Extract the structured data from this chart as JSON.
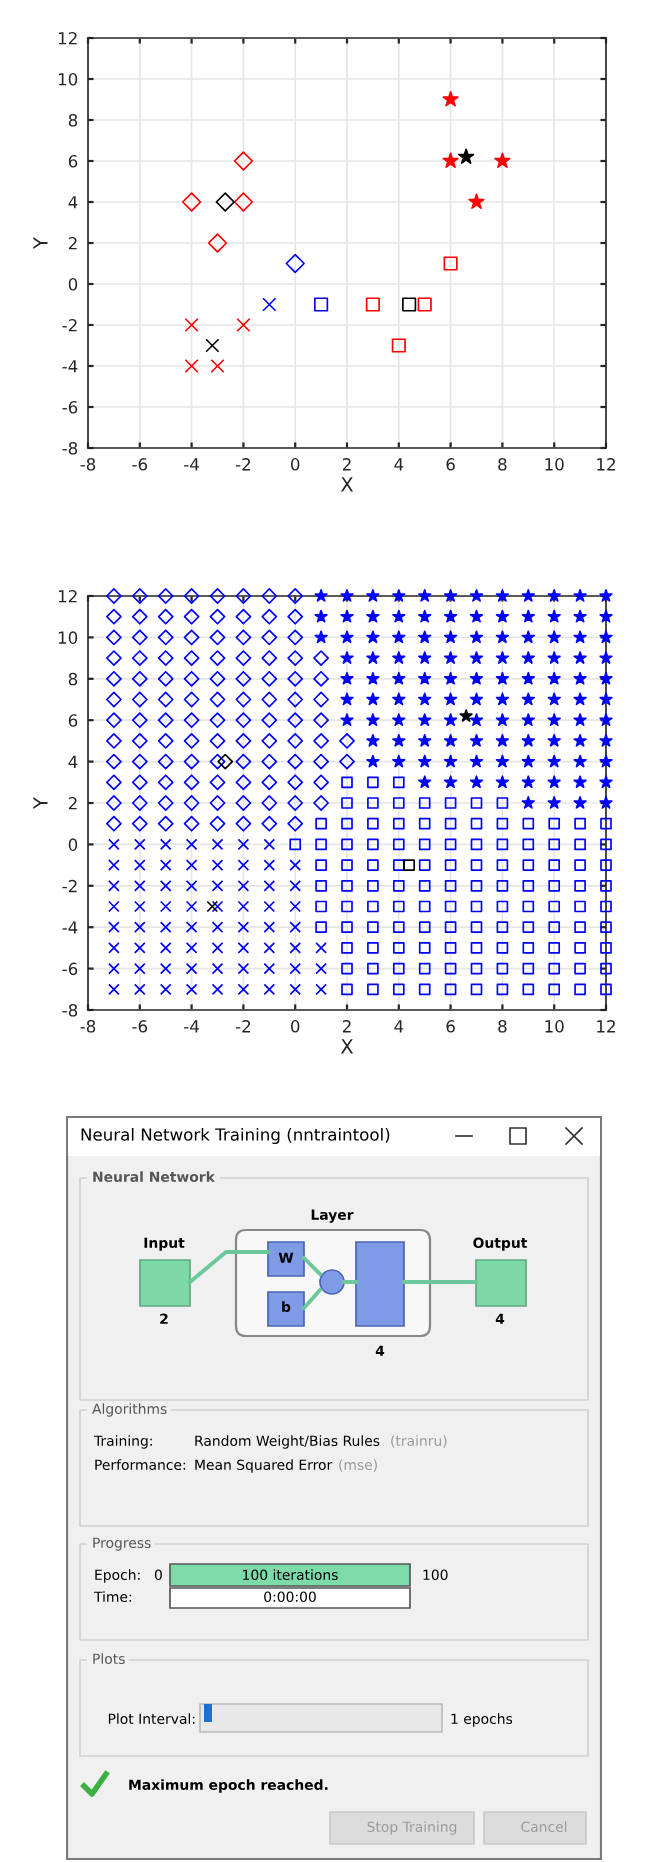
{
  "chart_data": [
    {
      "type": "scatter",
      "xlabel": "X",
      "ylabel": "Y",
      "xlim": [
        -8,
        12
      ],
      "ylim": [
        -8,
        12
      ],
      "xticks": [
        -8,
        -6,
        -4,
        -2,
        0,
        2,
        4,
        6,
        8,
        10,
        12
      ],
      "yticks": [
        -8,
        -6,
        -4,
        -2,
        0,
        2,
        4,
        6,
        8,
        10,
        12
      ],
      "grid": true,
      "series": [
        {
          "color": "#ff0000",
          "marker": "diamond",
          "x": [
            -4,
            -2,
            -2,
            -3
          ],
          "values": [
            4,
            6,
            4,
            2
          ]
        },
        {
          "color": "#0000ff",
          "marker": "diamond",
          "x": [
            0
          ],
          "values": [
            1
          ]
        },
        {
          "color": "#ff0000",
          "marker": "cross",
          "x": [
            -4,
            -2,
            -4,
            -3
          ],
          "values": [
            -2,
            -2,
            -4,
            -4
          ]
        },
        {
          "color": "#0000ff",
          "marker": "cross",
          "x": [
            -1
          ],
          "values": [
            -1
          ]
        },
        {
          "color": "#0000ff",
          "marker": "square",
          "x": [
            1
          ],
          "values": [
            -1
          ]
        },
        {
          "color": "#ff0000",
          "marker": "square",
          "x": [
            3,
            5,
            4,
            6
          ],
          "values": [
            -1,
            -1,
            -3,
            1
          ]
        },
        {
          "color": "#ff0000",
          "marker": "star",
          "x": [
            6,
            6,
            8,
            7
          ],
          "values": [
            9,
            6,
            6,
            4
          ]
        },
        {
          "color": "#000000",
          "marker": "diamond",
          "x": [
            -2.7
          ],
          "values": [
            4
          ]
        },
        {
          "color": "#000000",
          "marker": "cross",
          "x": [
            -3.2
          ],
          "values": [
            -3
          ]
        },
        {
          "color": "#000000",
          "marker": "square",
          "x": [
            4.4
          ],
          "values": [
            -1
          ]
        },
        {
          "color": "#000000",
          "marker": "star",
          "x": [
            6.6
          ],
          "values": [
            6.2
          ]
        }
      ]
    },
    {
      "type": "scatter",
      "xlabel": "X",
      "ylabel": "Y",
      "xlim": [
        -8,
        12
      ],
      "ylim": [
        -8,
        12
      ],
      "xticks": [
        -8,
        -6,
        -4,
        -2,
        0,
        2,
        4,
        6,
        8,
        10,
        12
      ],
      "yticks": [
        -8,
        -6,
        -4,
        -2,
        0,
        2,
        4,
        6,
        8,
        10,
        12
      ],
      "grid": true,
      "series": [
        {
          "color": "#0000ff",
          "marker": "diamond",
          "x": [
            -7,
            -6,
            -5,
            -4,
            -3,
            -2,
            -1,
            0,
            -7,
            -6,
            -5,
            -4,
            -3,
            -2,
            -1,
            0,
            -7,
            -6,
            -5,
            -4,
            -3,
            -2,
            -1,
            0,
            -7,
            -6,
            -5,
            -4,
            -3,
            -2,
            -1,
            0,
            1,
            -7,
            -6,
            -5,
            -4,
            -3,
            -2,
            -1,
            0,
            1,
            -7,
            -6,
            -5,
            -4,
            -3,
            -2,
            -1,
            0,
            1,
            -7,
            -6,
            -5,
            -4,
            -3,
            -2,
            -1,
            0,
            1,
            -7,
            -6,
            -5,
            -4,
            -3,
            -2,
            -1,
            0,
            1,
            2,
            -7,
            -6,
            -5,
            -4,
            -3,
            -2,
            -1,
            0,
            1,
            2,
            -7,
            -6,
            -5,
            -4,
            -3,
            -2,
            -1,
            0,
            1,
            -7,
            -6,
            -5,
            -4,
            -3,
            -2,
            -1,
            0,
            1,
            -7,
            -6,
            -5,
            -4,
            -3,
            -2,
            -1,
            0
          ],
          "values": [
            12,
            12,
            12,
            12,
            12,
            12,
            12,
            12,
            11,
            11,
            11,
            11,
            11,
            11,
            11,
            11,
            10,
            10,
            10,
            10,
            10,
            10,
            10,
            10,
            9,
            9,
            9,
            9,
            9,
            9,
            9,
            9,
            9,
            8,
            8,
            8,
            8,
            8,
            8,
            8,
            8,
            8,
            7,
            7,
            7,
            7,
            7,
            7,
            7,
            7,
            7,
            6,
            6,
            6,
            6,
            6,
            6,
            6,
            6,
            6,
            5,
            5,
            5,
            5,
            5,
            5,
            5,
            5,
            5,
            5,
            4,
            4,
            4,
            4,
            4,
            4,
            4,
            4,
            4,
            4,
            3,
            3,
            3,
            3,
            3,
            3,
            3,
            3,
            3,
            2,
            2,
            2,
            2,
            2,
            2,
            2,
            2,
            2,
            1,
            1,
            1,
            1,
            1,
            1,
            1,
            1
          ]
        },
        {
          "color": "#0000ff",
          "marker": "star",
          "x": [
            1,
            2,
            3,
            4,
            5,
            6,
            7,
            8,
            9,
            10,
            11,
            12,
            1,
            2,
            3,
            4,
            5,
            6,
            7,
            8,
            9,
            10,
            11,
            12,
            1,
            2,
            3,
            4,
            5,
            6,
            7,
            8,
            9,
            10,
            11,
            12,
            2,
            3,
            4,
            5,
            6,
            7,
            8,
            9,
            10,
            11,
            12,
            2,
            3,
            4,
            5,
            6,
            7,
            8,
            9,
            10,
            11,
            12,
            2,
            3,
            4,
            5,
            6,
            7,
            8,
            9,
            10,
            11,
            12,
            2,
            3,
            4,
            5,
            6,
            7,
            8,
            9,
            10,
            11,
            12,
            3,
            4,
            5,
            6,
            7,
            8,
            9,
            10,
            11,
            12,
            3,
            4,
            5,
            6,
            7,
            8,
            9,
            10,
            11,
            12,
            5,
            6,
            7,
            8,
            9,
            10,
            11,
            12,
            9,
            10,
            11,
            12
          ],
          "values": [
            12,
            12,
            12,
            12,
            12,
            12,
            12,
            12,
            12,
            12,
            12,
            12,
            11,
            11,
            11,
            11,
            11,
            11,
            11,
            11,
            11,
            11,
            11,
            11,
            10,
            10,
            10,
            10,
            10,
            10,
            10,
            10,
            10,
            10,
            10,
            10,
            9,
            9,
            9,
            9,
            9,
            9,
            9,
            9,
            9,
            9,
            9,
            8,
            8,
            8,
            8,
            8,
            8,
            8,
            8,
            8,
            8,
            8,
            7,
            7,
            7,
            7,
            7,
            7,
            7,
            7,
            7,
            7,
            7,
            6,
            6,
            6,
            6,
            6,
            6,
            6,
            6,
            6,
            6,
            6,
            5,
            5,
            5,
            5,
            5,
            5,
            5,
            5,
            5,
            5,
            4,
            4,
            4,
            4,
            4,
            4,
            4,
            4,
            4,
            4,
            3,
            3,
            3,
            3,
            3,
            3,
            3,
            3,
            2,
            2,
            2,
            2
          ]
        },
        {
          "color": "#0000ff",
          "marker": "square",
          "x": [
            2,
            3,
            4,
            2,
            3,
            4,
            5,
            6,
            7,
            8,
            1,
            2,
            3,
            4,
            5,
            6,
            7,
            8,
            9,
            10,
            11,
            12,
            0,
            1,
            2,
            3,
            4,
            5,
            6,
            7,
            8,
            9,
            10,
            11,
            12,
            1,
            2,
            3,
            4,
            5,
            6,
            7,
            8,
            9,
            10,
            11,
            12,
            1,
            2,
            3,
            4,
            5,
            6,
            7,
            8,
            9,
            10,
            11,
            12,
            1,
            2,
            3,
            4,
            5,
            6,
            7,
            8,
            9,
            10,
            11,
            12,
            1,
            2,
            3,
            4,
            5,
            6,
            7,
            8,
            9,
            10,
            11,
            12,
            2,
            3,
            4,
            5,
            6,
            7,
            8,
            9,
            10,
            11,
            12,
            2,
            3,
            4,
            5,
            6,
            7,
            8,
            9,
            10,
            11,
            12,
            2,
            3,
            4,
            5,
            6,
            7,
            8,
            9,
            10,
            11,
            12
          ],
          "values": [
            3,
            3,
            3,
            2,
            2,
            2,
            2,
            2,
            2,
            2,
            1,
            1,
            1,
            1,
            1,
            1,
            1,
            1,
            1,
            1,
            1,
            1,
            0,
            0,
            0,
            0,
            0,
            0,
            0,
            0,
            0,
            0,
            0,
            0,
            0,
            -1,
            -1,
            -1,
            -1,
            -1,
            -1,
            -1,
            -1,
            -1,
            -1,
            -1,
            -1,
            -2,
            -2,
            -2,
            -2,
            -2,
            -2,
            -2,
            -2,
            -2,
            -2,
            -2,
            -2,
            -3,
            -3,
            -3,
            -3,
            -3,
            -3,
            -3,
            -3,
            -3,
            -3,
            -3,
            -3,
            -4,
            -4,
            -4,
            -4,
            -4,
            -4,
            -4,
            -4,
            -4,
            -4,
            -4,
            -4,
            -5,
            -5,
            -5,
            -5,
            -5,
            -5,
            -5,
            -5,
            -5,
            -5,
            -5,
            -6,
            -6,
            -6,
            -6,
            -6,
            -6,
            -6,
            -6,
            -6,
            -6,
            -6,
            -7,
            -7,
            -7,
            -7,
            -7,
            -7,
            -7,
            -7,
            -7,
            -7,
            -7
          ]
        },
        {
          "color": "#0000ff",
          "marker": "cross",
          "x": [
            -7,
            -6,
            -5,
            -4,
            -3,
            -2,
            -1,
            -7,
            -6,
            -5,
            -4,
            -3,
            -2,
            -1,
            0,
            -7,
            -6,
            -5,
            -4,
            -3,
            -2,
            -1,
            0,
            -7,
            -6,
            -5,
            -4,
            -3,
            -2,
            -1,
            0,
            -7,
            -6,
            -5,
            -4,
            -3,
            -2,
            -1,
            0,
            -7,
            -6,
            -5,
            -4,
            -3,
            -2,
            -1,
            0,
            1,
            -7,
            -6,
            -5,
            -4,
            -3,
            -2,
            -1,
            0,
            1,
            -7,
            -6,
            -5,
            -4,
            -3,
            -2,
            -1,
            0,
            1
          ],
          "values": [
            0,
            0,
            0,
            0,
            0,
            0,
            0,
            -1,
            -1,
            -1,
            -1,
            -1,
            -1,
            -1,
            -1,
            -2,
            -2,
            -2,
            -2,
            -2,
            -2,
            -2,
            -2,
            -3,
            -3,
            -3,
            -3,
            -3,
            -3,
            -3,
            -3,
            -4,
            -4,
            -4,
            -4,
            -4,
            -4,
            -4,
            -4,
            -5,
            -5,
            -5,
            -5,
            -5,
            -5,
            -5,
            -5,
            -5,
            -6,
            -6,
            -6,
            -6,
            -6,
            -6,
            -6,
            -6,
            -6,
            -7,
            -7,
            -7,
            -7,
            -7,
            -7,
            -7,
            -7,
            -7
          ]
        },
        {
          "color": "#000000",
          "marker": "diamond",
          "x": [
            -2.7
          ],
          "values": [
            4
          ]
        },
        {
          "color": "#000000",
          "marker": "cross",
          "x": [
            -3.2
          ],
          "values": [
            -3
          ]
        },
        {
          "color": "#000000",
          "marker": "square",
          "x": [
            4.4
          ],
          "values": [
            -1
          ]
        },
        {
          "color": "#000000",
          "marker": "star",
          "x": [
            6.6
          ],
          "values": [
            6.2
          ]
        }
      ]
    },
    {
      "type": "other",
      "title": "Neural Network Training (nntraintool)",
      "annotations": [
        "Neural Network",
        "Input",
        "2",
        "Layer",
        "W",
        "b",
        "4",
        "Output",
        "4",
        "Algorithms",
        "Training:",
        "Random Weight/Bias Rules",
        "(trainru)",
        "Performance:",
        "Mean Squared Error",
        "(mse)",
        "Progress",
        "Epoch:",
        "0",
        "100 iterations",
        "100",
        "Time:",
        "0:00:00",
        "Plots",
        "Plot Interval:",
        "1 epochs",
        "Maximum epoch reached.",
        "Stop Training",
        "Cancel"
      ]
    }
  ]
}
